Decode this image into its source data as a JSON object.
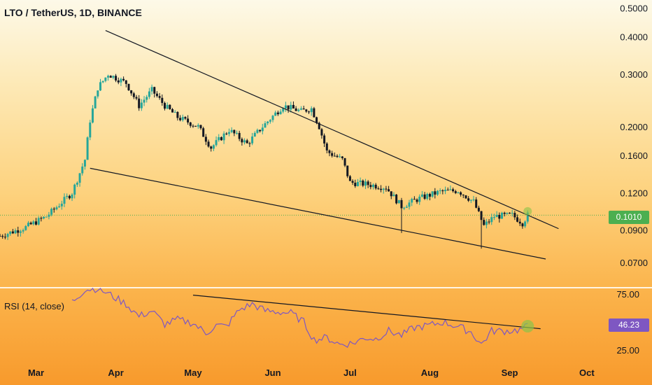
{
  "header": {
    "title": "LTO / TetherUS, 1D, BINANCE"
  },
  "rsi_panel": {
    "label": "RSI (14, close)"
  },
  "colors": {
    "candle_up": "#26a69a",
    "candle_down": "#131722",
    "rsi_line": "#7e57c2",
    "price_line": "#4caf50",
    "trendline": "#131722",
    "highlight": "#8bc34a"
  },
  "chart_data": [
    {
      "type": "candlestick",
      "title": "LTO / TetherUS, 1D, BINANCE",
      "y_scale": "log",
      "ylim": [
        0.058,
        0.52
      ],
      "y_ticks": [
        0.5,
        0.4,
        0.3,
        0.2,
        0.16,
        0.12,
        0.09,
        0.07
      ],
      "y_tick_labels": [
        "0.5000",
        "0.4000",
        "0.3000",
        "0.2000",
        "0.1600",
        "0.1200",
        "0.0900",
        "0.0700"
      ],
      "x_ticks": [
        "Mar",
        "Apr",
        "May",
        "Jun",
        "Jul",
        "Aug",
        "Sep",
        "Oct"
      ],
      "last_price": 0.101,
      "last_price_label": "0.1010",
      "close_path": [
        {
          "date": "2021-02-15",
          "close": 0.086
        },
        {
          "date": "2021-02-25",
          "close": 0.092
        },
        {
          "date": "2021-03-05",
          "close": 0.1
        },
        {
          "date": "2021-03-15",
          "close": 0.12
        },
        {
          "date": "2021-03-20",
          "close": 0.155
        },
        {
          "date": "2021-03-22",
          "close": 0.21
        },
        {
          "date": "2021-03-25",
          "close": 0.27
        },
        {
          "date": "2021-03-29",
          "close": 0.3
        },
        {
          "date": "2021-04-05",
          "close": 0.28
        },
        {
          "date": "2021-04-10",
          "close": 0.235
        },
        {
          "date": "2021-04-15",
          "close": 0.265
        },
        {
          "date": "2021-04-20",
          "close": 0.235
        },
        {
          "date": "2021-04-25",
          "close": 0.215
        },
        {
          "date": "2021-05-03",
          "close": 0.2
        },
        {
          "date": "2021-05-08",
          "close": 0.17
        },
        {
          "date": "2021-05-15",
          "close": 0.195
        },
        {
          "date": "2021-05-22",
          "close": 0.175
        },
        {
          "date": "2021-05-28",
          "close": 0.2
        },
        {
          "date": "2021-06-05",
          "close": 0.235
        },
        {
          "date": "2021-06-12",
          "close": 0.225
        },
        {
          "date": "2021-06-16",
          "close": 0.23
        },
        {
          "date": "2021-06-19",
          "close": 0.2
        },
        {
          "date": "2021-06-22",
          "close": 0.165
        },
        {
          "date": "2021-06-28",
          "close": 0.155
        },
        {
          "date": "2021-07-01",
          "close": 0.13
        },
        {
          "date": "2021-07-08",
          "close": 0.128
        },
        {
          "date": "2021-07-15",
          "close": 0.125
        },
        {
          "date": "2021-07-21",
          "close": 0.108
        },
        {
          "date": "2021-07-28",
          "close": 0.115
        },
        {
          "date": "2021-08-05",
          "close": 0.121
        },
        {
          "date": "2021-08-12",
          "close": 0.122
        },
        {
          "date": "2021-08-18",
          "close": 0.112
        },
        {
          "date": "2021-08-22",
          "close": 0.093
        },
        {
          "date": "2021-08-26",
          "close": 0.1
        },
        {
          "date": "2021-09-02",
          "close": 0.101
        },
        {
          "date": "2021-09-06",
          "close": 0.095
        },
        {
          "date": "2021-09-08",
          "close": 0.101
        }
      ],
      "lows": [
        {
          "date": "2021-07-21",
          "low": 0.088
        },
        {
          "date": "2021-08-21",
          "low": 0.078
        }
      ],
      "trendlines": [
        {
          "from": {
            "date": "2021-03-28",
            "price": 0.42
          },
          "to": {
            "date": "2021-09-20",
            "price": 0.091
          }
        },
        {
          "from": {
            "date": "2021-03-22",
            "price": 0.145
          },
          "to": {
            "date": "2021-09-15",
            "price": 0.072
          }
        }
      ]
    },
    {
      "type": "line",
      "title": "RSI (14, close)",
      "ylim": [
        15,
        80
      ],
      "y_ticks": [
        75,
        25
      ],
      "y_tick_labels": [
        "75.00",
        "25.00"
      ],
      "last_value": 46.23,
      "last_value_label": "46.23",
      "values": [
        {
          "date": "2021-03-15",
          "value": 68
        },
        {
          "date": "2021-03-20",
          "value": 79
        },
        {
          "date": "2021-03-25",
          "value": 80
        },
        {
          "date": "2021-03-30",
          "value": 74
        },
        {
          "date": "2021-04-05",
          "value": 66
        },
        {
          "date": "2021-04-10",
          "value": 55
        },
        {
          "date": "2021-04-15",
          "value": 60
        },
        {
          "date": "2021-04-20",
          "value": 48
        },
        {
          "date": "2021-04-25",
          "value": 52
        },
        {
          "date": "2021-05-01",
          "value": 49
        },
        {
          "date": "2021-05-06",
          "value": 40
        },
        {
          "date": "2021-05-10",
          "value": 47
        },
        {
          "date": "2021-05-14",
          "value": 46
        },
        {
          "date": "2021-05-19",
          "value": 61
        },
        {
          "date": "2021-05-24",
          "value": 66
        },
        {
          "date": "2021-05-29",
          "value": 60
        },
        {
          "date": "2021-06-03",
          "value": 59
        },
        {
          "date": "2021-06-08",
          "value": 58
        },
        {
          "date": "2021-06-13",
          "value": 50
        },
        {
          "date": "2021-06-17",
          "value": 34
        },
        {
          "date": "2021-06-22",
          "value": 36
        },
        {
          "date": "2021-06-27",
          "value": 30
        },
        {
          "date": "2021-07-02",
          "value": 31
        },
        {
          "date": "2021-07-07",
          "value": 36
        },
        {
          "date": "2021-07-11",
          "value": 35
        },
        {
          "date": "2021-07-16",
          "value": 42
        },
        {
          "date": "2021-07-21",
          "value": 38
        },
        {
          "date": "2021-07-26",
          "value": 45
        },
        {
          "date": "2021-08-01",
          "value": 47
        },
        {
          "date": "2021-08-06",
          "value": 50
        },
        {
          "date": "2021-08-12",
          "value": 46
        },
        {
          "date": "2021-08-17",
          "value": 41
        },
        {
          "date": "2021-08-21",
          "value": 30
        },
        {
          "date": "2021-08-25",
          "value": 42
        },
        {
          "date": "2021-08-31",
          "value": 42
        },
        {
          "date": "2021-09-05",
          "value": 43
        },
        {
          "date": "2021-09-08",
          "value": 46
        }
      ],
      "trendlines": [
        {
          "from": {
            "date": "2021-05-01",
            "value": 74
          },
          "to": {
            "date": "2021-09-13",
            "value": 44
          }
        }
      ]
    }
  ]
}
